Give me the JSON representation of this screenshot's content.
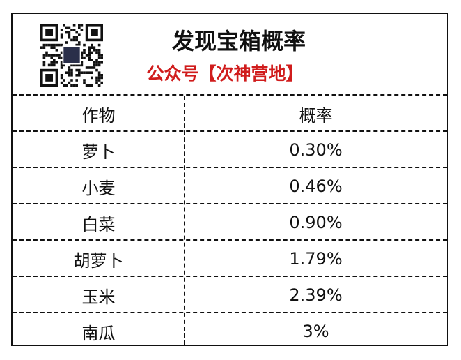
{
  "header": {
    "title": "发现宝箱概率",
    "subtitle": "公众号【次神营地】",
    "qr_icon": "qr-code",
    "subtitle_color": "#d01c1c"
  },
  "table": {
    "columns": [
      "作物",
      "概率"
    ],
    "rows": [
      [
        "萝卜",
        "0.30%"
      ],
      [
        "小麦",
        "0.46%"
      ],
      [
        "白菜",
        "0.90%"
      ],
      [
        "胡萝卜",
        "1.79%"
      ],
      [
        "玉米",
        "2.39%"
      ],
      [
        "南瓜",
        "3%"
      ]
    ]
  }
}
